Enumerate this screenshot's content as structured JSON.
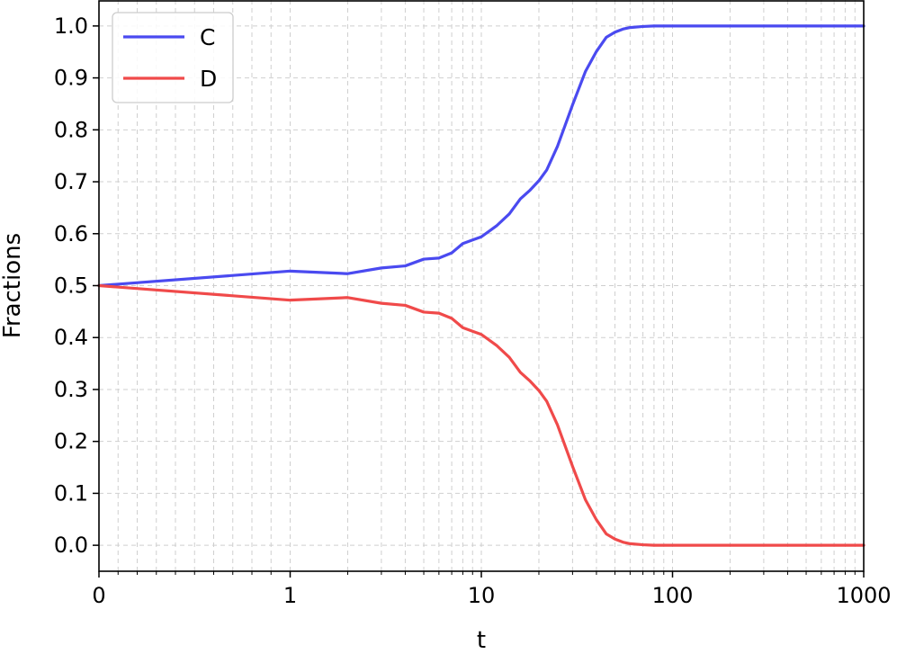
{
  "chart_data": {
    "type": "line",
    "x_scale": "symlog",
    "xlabel": "t",
    "ylabel": "Fractions",
    "xlim": [
      0,
      1000
    ],
    "ylim": [
      -0.05,
      1.05
    ],
    "grid": true,
    "legend_position": "top-left",
    "x_ticks": [
      0,
      1,
      10,
      100,
      1000
    ],
    "x_tick_labels": [
      "0",
      "1",
      "10",
      "100",
      "1000"
    ],
    "y_ticks": [
      0.0,
      0.1,
      0.2,
      0.3,
      0.4,
      0.5,
      0.6,
      0.7,
      0.8,
      0.9,
      1.0
    ],
    "y_tick_labels": [
      "0.0",
      "0.1",
      "0.2",
      "0.3",
      "0.4",
      "0.5",
      "0.6",
      "0.7",
      "0.8",
      "0.9",
      "1.0"
    ],
    "x": [
      0,
      1,
      2,
      3,
      4,
      5,
      6,
      7,
      8,
      9,
      10,
      12,
      14,
      16,
      18,
      20,
      22,
      25,
      30,
      35,
      40,
      45,
      50,
      55,
      60,
      70,
      80,
      100,
      200,
      500,
      1000
    ],
    "series": [
      {
        "name": "C",
        "color": "#4a4af0",
        "values": [
          0.5,
          0.528,
          0.523,
          0.534,
          0.538,
          0.551,
          0.553,
          0.563,
          0.581,
          0.588,
          0.594,
          0.615,
          0.638,
          0.667,
          0.684,
          0.702,
          0.723,
          0.768,
          0.848,
          0.912,
          0.951,
          0.978,
          0.988,
          0.994,
          0.997,
          0.999,
          1.0,
          1.0,
          1.0,
          1.0,
          1.0
        ]
      },
      {
        "name": "D",
        "color": "#f04a4a",
        "values": [
          0.5,
          0.472,
          0.477,
          0.466,
          0.462,
          0.449,
          0.447,
          0.437,
          0.419,
          0.412,
          0.406,
          0.385,
          0.362,
          0.333,
          0.316,
          0.298,
          0.277,
          0.232,
          0.152,
          0.088,
          0.049,
          0.022,
          0.012,
          0.006,
          0.003,
          0.001,
          0.0,
          0.0,
          0.0,
          0.0,
          0.0
        ]
      }
    ]
  }
}
